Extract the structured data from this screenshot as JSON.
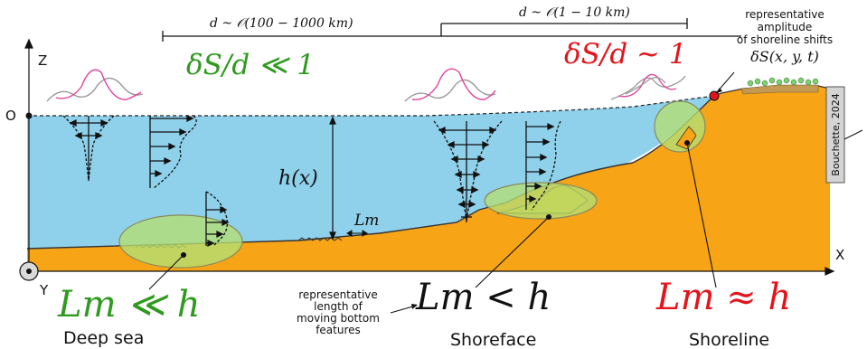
{
  "axes": {
    "z_label": "Z",
    "origin_label": "O",
    "x_label": "X",
    "y_label": "Y"
  },
  "scales": {
    "large": "d ~ 𝒪(100 − 1000 km)",
    "small": "d ~ 𝒪(1 − 10 km)"
  },
  "ratios": {
    "deep": "δS/d ≪ 1",
    "shoreline": "δS/d ~ 1"
  },
  "shoreline_note": {
    "line1": "representative",
    "line2": "amplitude",
    "line3": "of shoreline shifts",
    "symbol": "δS(x, y, t)"
  },
  "depth_label": "h(x)",
  "lm_label": "Lm",
  "regimes": [
    {
      "formula": "Lm ≪ h",
      "name": "Deep sea",
      "color": "#2e9a1e"
    },
    {
      "formula": "Lm < h",
      "name": "Shoreface",
      "color": "#111111"
    },
    {
      "formula": "Lm ≈ h",
      "name": "Shoreline",
      "color": "#e3141b"
    }
  ],
  "features_note": {
    "line1": "representative",
    "line2": "length of",
    "line3": "moving bottom",
    "line4": "features"
  },
  "credit": "Bouchette, 2024",
  "colors": {
    "water": "#8fd0ea",
    "sand": "#f7a417",
    "ellipse": "#b3de73",
    "wave_pink": "#e0459a",
    "deep_green": "#2e9a1e",
    "shore_red": "#e3141b"
  }
}
